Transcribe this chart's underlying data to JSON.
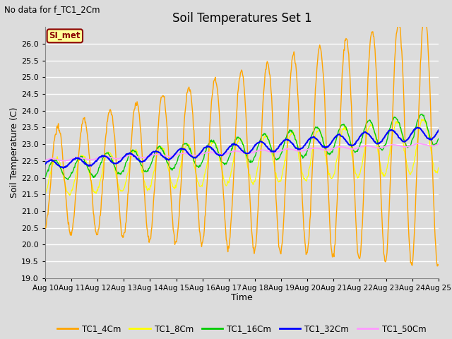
{
  "title": "Soil Temperatures Set 1",
  "subtitle": "No data for f_TC1_2Cm",
  "xlabel": "Time",
  "ylabel": "Soil Temperature (C)",
  "ylim": [
    19.0,
    26.5
  ],
  "yticks": [
    19.0,
    19.5,
    20.0,
    20.5,
    21.0,
    21.5,
    22.0,
    22.5,
    23.0,
    23.5,
    24.0,
    24.5,
    25.0,
    25.5,
    26.0
  ],
  "xlim": [
    10,
    25
  ],
  "xtick_days": [
    10,
    11,
    12,
    13,
    14,
    15,
    16,
    17,
    18,
    19,
    20,
    21,
    22,
    23,
    24,
    25
  ],
  "legend_labels": [
    "TC1_4Cm",
    "TC1_8Cm",
    "TC1_16Cm",
    "TC1_32Cm",
    "TC1_50Cm"
  ],
  "legend_colors": [
    "#FFA500",
    "#FFFF00",
    "#00CC00",
    "#0000FF",
    "#FF99FF"
  ],
  "line_colors": {
    "TC1_4Cm": "#FFA500",
    "TC1_8Cm": "#FFFF00",
    "TC1_16Cm": "#00CC00",
    "TC1_32Cm": "#0000FF",
    "TC1_50Cm": "#FF99FF"
  },
  "bg_color": "#DCDCDC",
  "grid_color": "#FFFFFF",
  "annotation_text": "SI_met",
  "annotation_bg": "#FFFF99",
  "annotation_border": "#8B0000"
}
